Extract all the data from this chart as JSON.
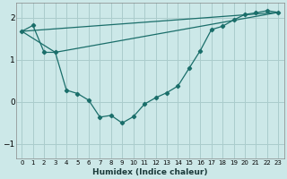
{
  "xlabel": "Humidex (Indice chaleur)",
  "bg_color": "#cce8e8",
  "grid_color": "#aacccc",
  "line_color": "#1a6e6a",
  "xlim": [
    -0.5,
    23.5
  ],
  "ylim": [
    -1.35,
    2.35
  ],
  "yticks": [
    -1,
    0,
    1,
    2
  ],
  "xticks": [
    0,
    1,
    2,
    3,
    4,
    5,
    6,
    7,
    8,
    9,
    10,
    11,
    12,
    13,
    14,
    15,
    16,
    17,
    18,
    19,
    20,
    21,
    22,
    23
  ],
  "line1_x": [
    0,
    1,
    2,
    3,
    4,
    5,
    6,
    7,
    8,
    9,
    10,
    11,
    12,
    13,
    14,
    15,
    16,
    17,
    18,
    19,
    20,
    21,
    22,
    23
  ],
  "line1_y": [
    1.68,
    1.82,
    1.18,
    1.18,
    0.28,
    0.2,
    0.04,
    -0.36,
    -0.32,
    -0.5,
    -0.35,
    -0.05,
    0.1,
    0.22,
    0.38,
    0.8,
    1.22,
    1.72,
    1.8,
    1.95,
    2.08,
    2.12,
    2.17,
    2.13
  ],
  "line2_x": [
    0,
    3,
    23
  ],
  "line2_y": [
    1.68,
    1.18,
    2.13
  ],
  "line3_x": [
    0,
    23
  ],
  "line3_y": [
    1.68,
    2.13
  ]
}
